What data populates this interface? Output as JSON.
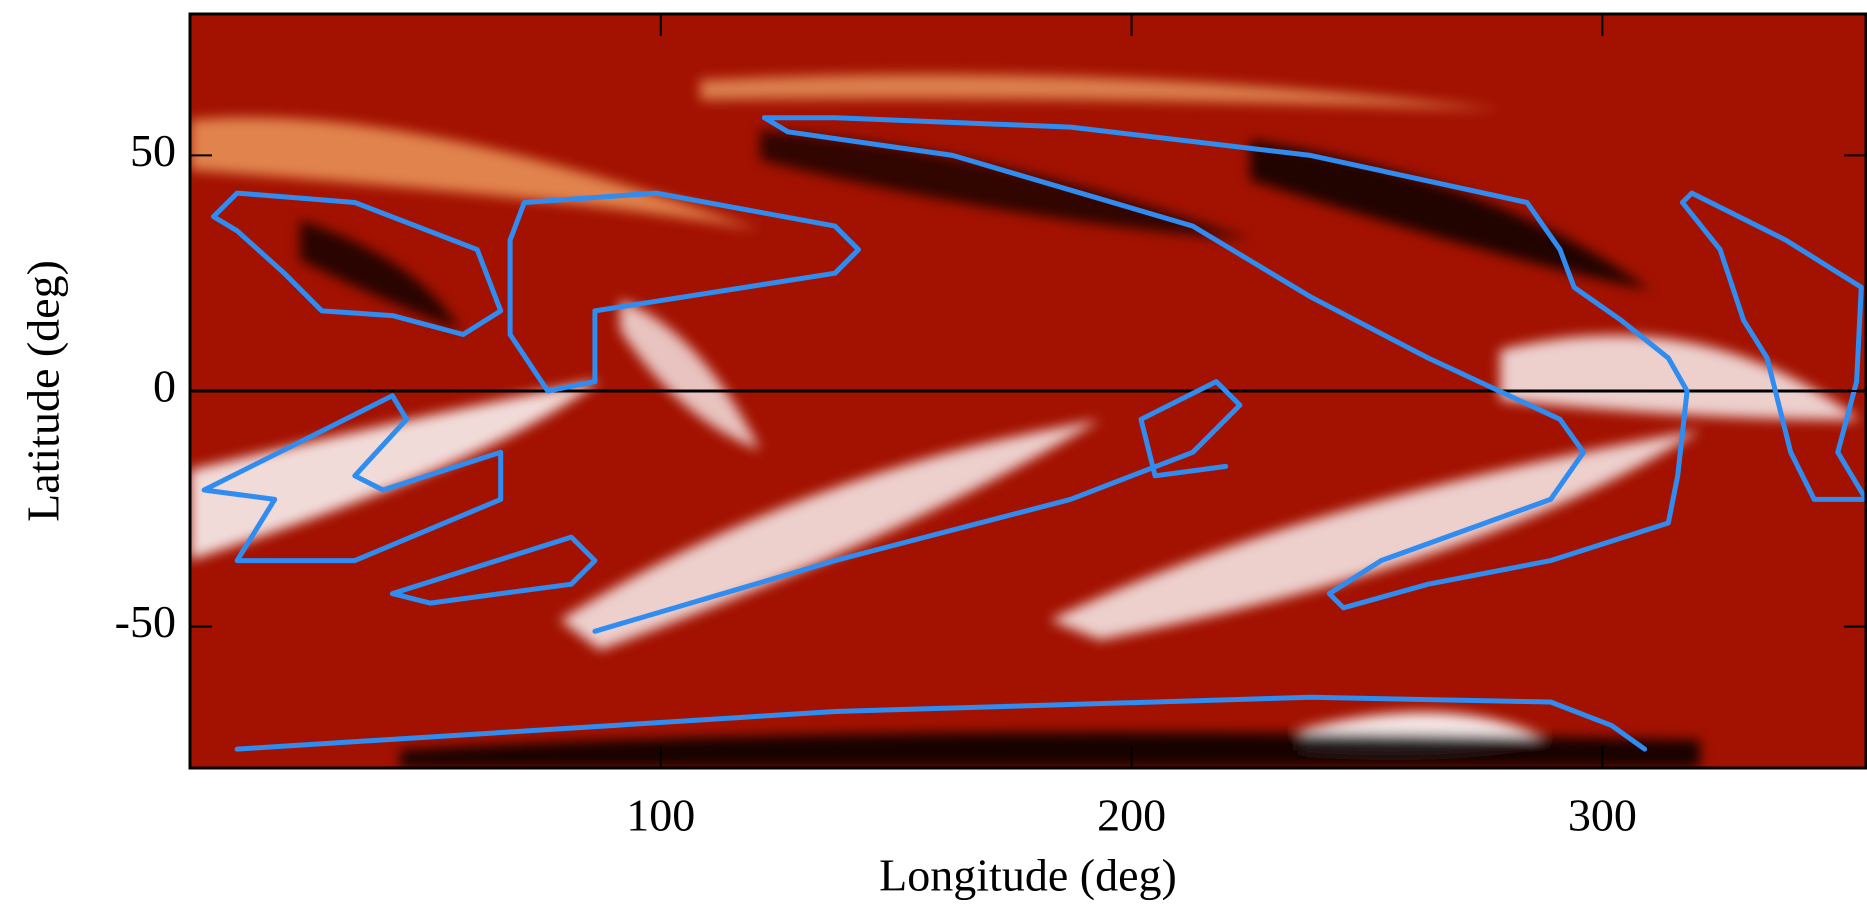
{
  "chart_data": {
    "type": "contour",
    "x_label": "Longitude (deg)",
    "y_label": "Latitude (deg)",
    "xlim": [
      0,
      356
    ],
    "ylim": [
      -80,
      80
    ],
    "xticks": [
      100,
      200,
      300
    ],
    "yticks": [
      -50,
      0,
      50
    ],
    "hlines": [
      0
    ],
    "color": "#2f8cf0",
    "series": [
      {
        "x": [
          10,
          137,
          238,
          289,
          302,
          309
        ],
        "y": [
          -76,
          -68,
          -65,
          -66,
          -71,
          -76
        ]
      },
      {
        "x": [
          122,
          137,
          187,
          238,
          284,
          291,
          294,
          304,
          314,
          318,
          316,
          314,
          289,
          263,
          245,
          242,
          253,
          289,
          296,
          291,
          263,
          238,
          213,
          162,
          127,
          122
        ],
        "y": [
          58,
          58,
          56,
          50,
          40,
          30,
          22,
          15,
          7,
          0,
          -18,
          -28,
          -36,
          -41,
          -46,
          -43,
          -36,
          -23,
          -13,
          -6,
          7,
          20,
          35,
          50,
          55,
          58
        ]
      },
      {
        "x": [
          5,
          10,
          35,
          61,
          66,
          58,
          43,
          28,
          20,
          10,
          5
        ],
        "y": [
          37,
          42,
          40,
          30,
          17,
          12,
          16,
          17,
          25,
          34,
          37
        ]
      },
      {
        "x": [
          71,
          99,
          137,
          142,
          137,
          86,
          86,
          76,
          68,
          68,
          71
        ],
        "y": [
          40,
          42,
          35,
          30,
          25,
          17,
          2,
          0,
          12,
          32,
          40
        ]
      },
      {
        "x": [
          3,
          23,
          43,
          46,
          35,
          41,
          66,
          66,
          35,
          10,
          18,
          3
        ],
        "y": [
          -21,
          -11,
          -1,
          -6,
          -18,
          -21,
          -13,
          -23,
          -36,
          -36,
          -23,
          -21
        ]
      },
      {
        "x": [
          43,
          81,
          86,
          81,
          51,
          43
        ],
        "y": [
          -43,
          -31,
          -36,
          -41,
          -45,
          -43
        ]
      },
      {
        "x": [
          86,
          137,
          187,
          213,
          223,
          218,
          202,
          205,
          220
        ],
        "y": [
          -51,
          -36,
          -23,
          -13,
          -3,
          2,
          -6,
          -18,
          -16
        ]
      },
      {
        "x": [
          319,
          339,
          355,
          354,
          350,
          356,
          345,
          340,
          335,
          330,
          325,
          317,
          319
        ],
        "y": [
          42,
          32,
          22,
          2,
          -13,
          -23,
          -23,
          -13,
          7,
          15,
          30,
          40,
          42
        ]
      }
    ]
  }
}
